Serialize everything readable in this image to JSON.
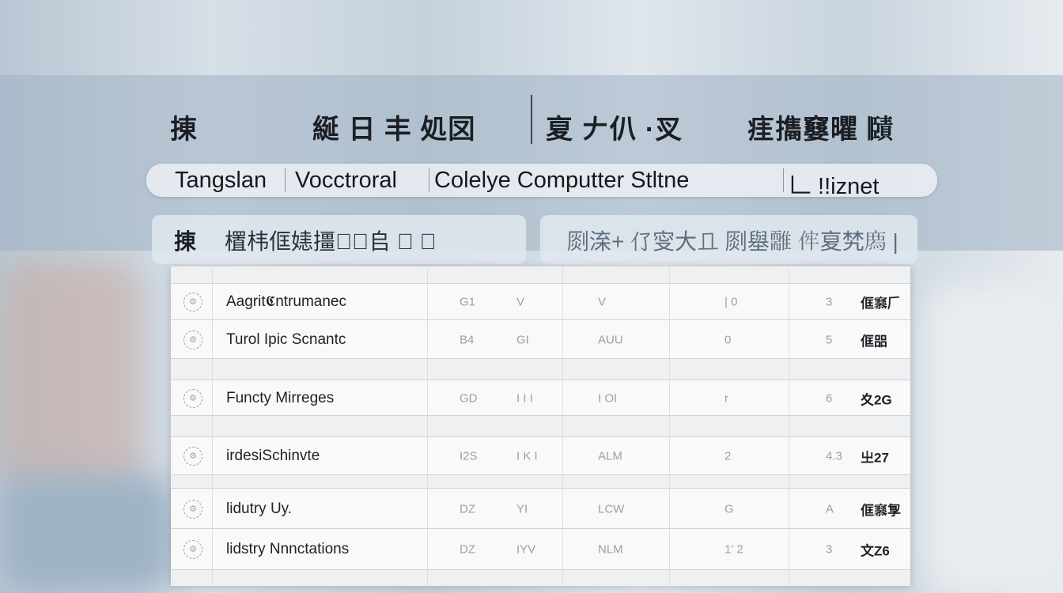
{
  "header": {
    "title_segments": [
      "㨂",
      "綖 日 丰 処㘝",
      "㚆 𠂇仈 ·㕚",
      "㾏㩦䆯㬬 𧷤"
    ],
    "subtitle_segments": [
      "Tangslan",
      "Vocctroral",
      "Colelye Computter Stltne",
      "𠃊 !!iznet"
    ]
  },
  "tabs": [
    {
      "icon": "㨂",
      "label": "㯰㭏㑌㜇㩖𠆧𠀒𠂤 𢥜 𢕄"
    },
    {
      "label": "㓹㳿+ 𠆨㝕大𠀃 㓹𡒊𩁃 𠈭㚆㭝𢊁 |"
    }
  ],
  "table": {
    "rows": [
      {
        "name": "Aagrit𝕮ntrumanec",
        "c1": "G1",
        "c2": "V",
        "c3": "V",
        "c4": "| 0",
        "c5": "3",
        "c6": "㑌𢥜𠂆"
      },
      {
        "name": "Turol Ipic Scnantc",
        "c1": "B4",
        "c2": "GI",
        "c3": "AUU",
        "c4": "0",
        "c5": "5",
        "c6": "㑌㗊"
      },
      {
        "name": "Functy Mirreges",
        "c1": "GD",
        "c2": "I I I",
        "c3": "I OI",
        "c4": "r",
        "c5": "6",
        "c6": "夊2G"
      },
      {
        "name": "irdesiSchinvte",
        "c1": "I2S",
        "c2": "I K I",
        "c3": "ALM",
        "c4": "2",
        "c5": "4.3",
        "c6": "㞢27"
      },
      {
        "name": "lidutry Uy.",
        "c1": "DZ",
        "c2": "YI",
        "c3": "LCW",
        "c4": "G",
        "c5": "A",
        "c6": "㑌𢥜㝁"
      },
      {
        "name": "lidstry Nnnctations",
        "c1": "DZ",
        "c2": "IYV",
        "c3": "NLM",
        "c4": "1'  2",
        "c5": "3",
        "c6": "文Z6"
      }
    ]
  }
}
